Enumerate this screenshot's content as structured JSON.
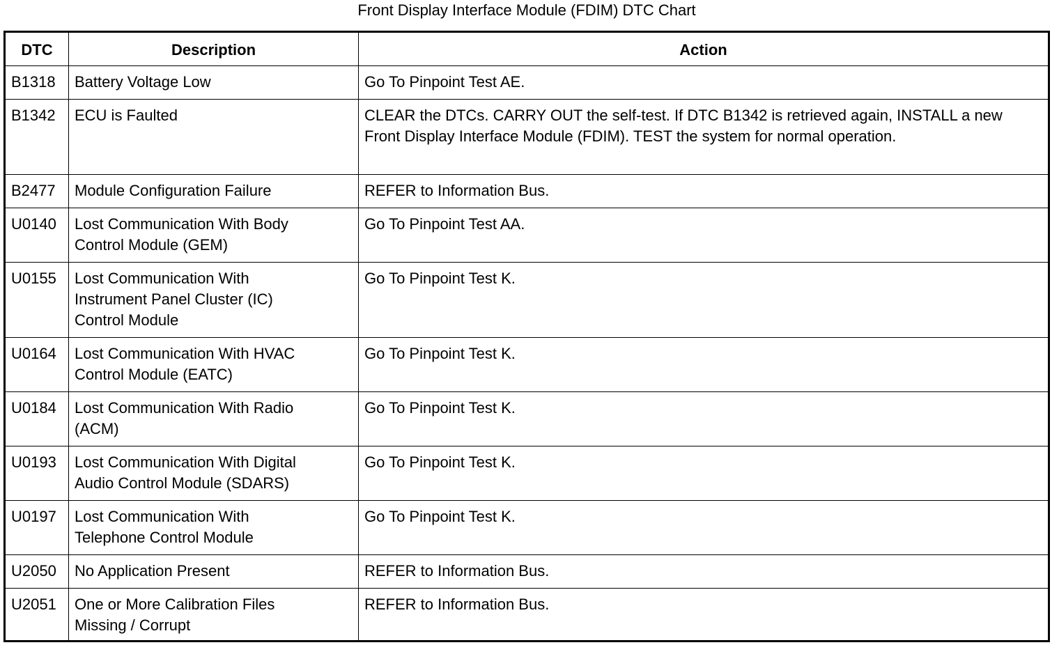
{
  "title": "Front Display Interface Module (FDIM) DTC Chart",
  "table": {
    "headers": [
      "DTC",
      "Description",
      "Action"
    ],
    "rows": [
      {
        "dtc": "B1318",
        "description": "Battery Voltage Low",
        "action": "Go To Pinpoint Test AE."
      },
      {
        "dtc": "B1342",
        "description": "ECU is Faulted",
        "action": "CLEAR the DTCs. CARRY OUT the self-test. If DTC B1342 is retrieved again, INSTALL a new Front Display Interface Module (FDIM). TEST the system for normal operation."
      },
      {
        "dtc": "B2477",
        "description": "Module Configuration Failure",
        "action": "REFER to Information Bus."
      },
      {
        "dtc": "U0140",
        "description": "Lost Communication With Body Control Module (GEM)",
        "action": "Go To Pinpoint Test AA."
      },
      {
        "dtc": "U0155",
        "description": "Lost Communication With Instrument Panel Cluster (IC) Control Module",
        "action": "Go To Pinpoint Test K."
      },
      {
        "dtc": "U0164",
        "description": "Lost Communication With HVAC Control Module (EATC)",
        "action": "Go To Pinpoint Test K."
      },
      {
        "dtc": "U0184",
        "description": "Lost Communication With Radio (ACM)",
        "action": "Go To Pinpoint Test K."
      },
      {
        "dtc": "U0193",
        "description": "Lost Communication With Digital Audio Control Module (SDARS)",
        "action": "Go To Pinpoint Test K."
      },
      {
        "dtc": "U0197",
        "description": "Lost Communication With Telephone Control Module",
        "action": "Go To Pinpoint Test K."
      },
      {
        "dtc": "U2050",
        "description": "No Application Present",
        "action": "REFER to Information Bus."
      },
      {
        "dtc": "U2051",
        "description": "One or More Calibration Files Missing / Corrupt",
        "action": "REFER to Information Bus."
      }
    ]
  }
}
